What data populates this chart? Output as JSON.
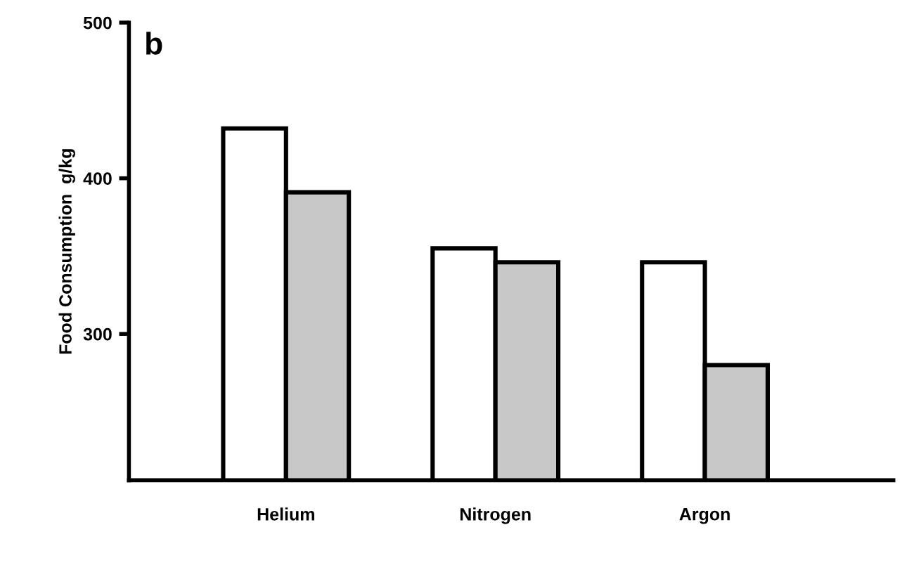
{
  "chart_data": {
    "type": "bar",
    "ylabel": "Food Consumption  g/kg",
    "annotations": [
      "b"
    ],
    "categories": [
      "Helium",
      "Nitrogen",
      "Argon"
    ],
    "series": [
      {
        "color": "#ffffff",
        "values": [
          432,
          355,
          346
        ]
      },
      {
        "color": "#c8c8c8",
        "values": [
          391,
          346,
          280
        ]
      }
    ],
    "ylim": [
      206,
      500
    ],
    "yticks": [
      300,
      400,
      500
    ],
    "grid": false
  }
}
